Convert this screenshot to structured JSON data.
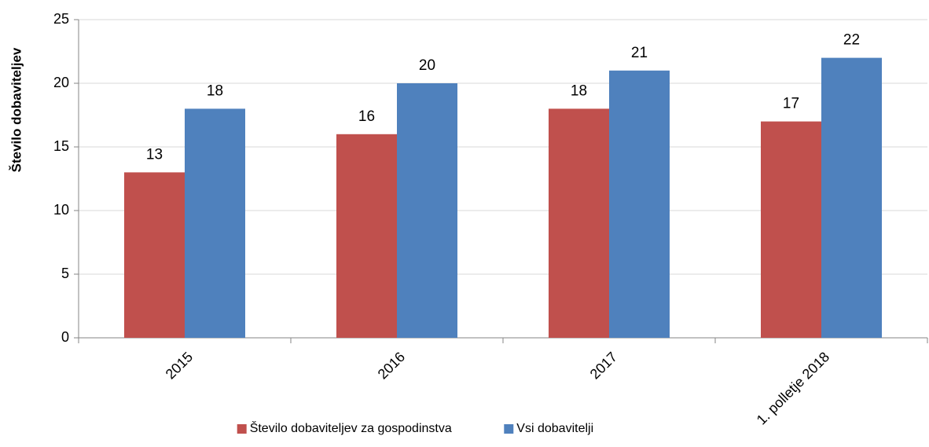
{
  "chart_data": {
    "type": "bar",
    "y_label": "Število dobaviteljev",
    "categories": [
      "2015",
      "2016",
      "2017",
      "1. polletje 2018"
    ],
    "series": [
      {
        "name": "Število dobaviteljev za gospodinstva",
        "color": "#c0504d",
        "values": [
          13,
          16,
          18,
          17
        ]
      },
      {
        "name": "Vsi dobavitelji",
        "color": "#4f81bd",
        "values": [
          18,
          20,
          21,
          22
        ]
      }
    ],
    "ylim": [
      0,
      25
    ],
    "yticks": [
      0,
      5,
      10,
      15,
      20,
      25
    ],
    "grid": true,
    "legend": "bottom"
  }
}
